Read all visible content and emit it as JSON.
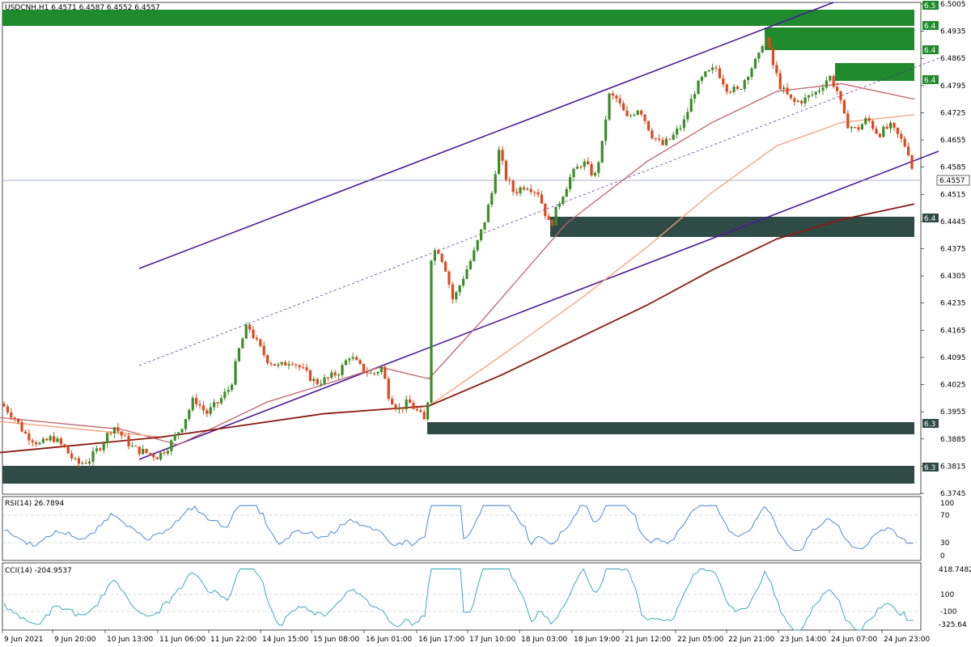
{
  "header": {
    "symbol_line": "USDCNH,H1  6.4571 6.4587 6.4552 6.4557"
  },
  "colors": {
    "bull": "#3d8c2a",
    "bear": "#e0481c",
    "zone_green": "#1f8b2c",
    "zone_dark": "#2f4b46",
    "channel": "#4b1a9a",
    "ma_fast": "#c0646b",
    "ma_mid": "#f2a27c",
    "ma_slow": "#8b1a12",
    "rsi": "#3a7fd0",
    "cci": "#2aa0b8"
  },
  "price_axis": {
    "ticks": [
      "6.5005",
      "6.4935",
      "6.4865",
      "6.4795",
      "6.4725",
      "6.4655",
      "6.4585",
      "6.4515",
      "6.4445",
      "6.4375",
      "6.4305",
      "6.4235",
      "6.4165",
      "6.4095",
      "6.4025",
      "6.3955",
      "6.3885",
      "6.3815",
      "6.3745"
    ],
    "current_label": "6.4557",
    "zone_labels": [
      "6.5",
      "6.4",
      "6.4",
      "6.4",
      "6.4",
      "6.3",
      "6.3"
    ]
  },
  "time_axis": {
    "labels": [
      "9 Jun 2021",
      "9 Jun 20:00",
      "10 Jun 13:00",
      "11 Jun 06:00",
      "11 Jun 22:00",
      "14 Jun 15:00",
      "15 Jun 08:00",
      "16 Jun 01:00",
      "16 Jun 17:00",
      "17 Jun 10:00",
      "18 Jun 03:00",
      "18 Jun 19:00",
      "21 Jun 12:00",
      "22 Jun 05:00",
      "22 Jun 21:00",
      "23 Jun 14:00",
      "24 Jun 07:00",
      "24 Jun 23:00"
    ]
  },
  "rsi_panel": {
    "title": "RSI(14) 26.7894",
    "levels": [
      "100",
      "70",
      "30",
      "0"
    ]
  },
  "cci_panel": {
    "title": "CCI(14) -204.9537",
    "levels": [
      "418.7482",
      "100",
      "-100",
      "-325.64"
    ]
  },
  "chart_data": {
    "type": "candlestick",
    "symbol": "USDCNH",
    "timeframe": "H1",
    "last": {
      "open": 6.4571,
      "high": 6.4587,
      "low": 6.4552,
      "close": 6.4557
    },
    "ylim": [
      6.3745,
      6.5005
    ],
    "close_path": [
      [
        0,
        6.398
      ],
      [
        18,
        6.394
      ],
      [
        30,
        6.39
      ],
      [
        50,
        6.387
      ],
      [
        65,
        6.389
      ],
      [
        80,
        6.386
      ],
      [
        95,
        6.382
      ],
      [
        110,
        6.383
      ],
      [
        125,
        6.387
      ],
      [
        140,
        6.392
      ],
      [
        152,
        6.389
      ],
      [
        165,
        6.386
      ],
      [
        180,
        6.385
      ],
      [
        195,
        6.384
      ],
      [
        210,
        6.387
      ],
      [
        225,
        6.392
      ],
      [
        240,
        6.399
      ],
      [
        255,
        6.395
      ],
      [
        270,
        6.398
      ],
      [
        285,
        6.402
      ],
      [
        296,
        6.412
      ],
      [
        306,
        6.418
      ],
      [
        318,
        6.413
      ],
      [
        330,
        6.409
      ],
      [
        345,
        6.407
      ],
      [
        360,
        6.409
      ],
      [
        375,
        6.406
      ],
      [
        390,
        6.403
      ],
      [
        405,
        6.404
      ],
      [
        420,
        6.406
      ],
      [
        432,
        6.41
      ],
      [
        445,
        6.407
      ],
      [
        460,
        6.405
      ],
      [
        472,
        6.407
      ],
      [
        480,
        6.4
      ],
      [
        492,
        6.396
      ],
      [
        505,
        6.398
      ],
      [
        518,
        6.395
      ],
      [
        528,
        6.392
      ],
      [
        532,
        6.435
      ],
      [
        540,
        6.438
      ],
      [
        550,
        6.433
      ],
      [
        560,
        6.424
      ],
      [
        572,
        6.43
      ],
      [
        585,
        6.436
      ],
      [
        598,
        6.444
      ],
      [
        608,
        6.452
      ],
      [
        616,
        6.463
      ],
      [
        625,
        6.456
      ],
      [
        635,
        6.452
      ],
      [
        650,
        6.454
      ],
      [
        665,
        6.452
      ],
      [
        680,
        6.443
      ],
      [
        690,
        6.449
      ],
      [
        705,
        6.456
      ],
      [
        720,
        6.46
      ],
      [
        735,
        6.456
      ],
      [
        745,
        6.465
      ],
      [
        752,
        6.477
      ],
      [
        762,
        6.476
      ],
      [
        775,
        6.471
      ],
      [
        790,
        6.474
      ],
      [
        805,
        6.467
      ],
      [
        818,
        6.464
      ],
      [
        830,
        6.466
      ],
      [
        845,
        6.47
      ],
      [
        858,
        6.478
      ],
      [
        870,
        6.482
      ],
      [
        885,
        6.484
      ],
      [
        898,
        6.479
      ],
      [
        912,
        6.478
      ],
      [
        925,
        6.483
      ],
      [
        938,
        6.487
      ],
      [
        945,
        6.493
      ],
      [
        955,
        6.485
      ],
      [
        965,
        6.479
      ],
      [
        980,
        6.475
      ],
      [
        995,
        6.476
      ],
      [
        1010,
        6.478
      ],
      [
        1025,
        6.482
      ],
      [
        1035,
        6.478
      ],
      [
        1045,
        6.47
      ],
      [
        1058,
        6.468
      ],
      [
        1072,
        6.471
      ],
      [
        1085,
        6.467
      ],
      [
        1100,
        6.469
      ],
      [
        1112,
        6.466
      ],
      [
        1122,
        6.463
      ],
      [
        1130,
        6.4557
      ]
    ],
    "indicators": {
      "ma_fast": [
        [
          0,
          6.394
        ],
        [
          150,
          6.391
        ],
        [
          220,
          6.387
        ],
        [
          330,
          6.398
        ],
        [
          470,
          6.407
        ],
        [
          530,
          6.404
        ],
        [
          600,
          6.42
        ],
        [
          700,
          6.444
        ],
        [
          800,
          6.46
        ],
        [
          880,
          6.47
        ],
        [
          960,
          6.478
        ],
        [
          1040,
          6.48
        ],
        [
          1130,
          6.476
        ]
      ],
      "ma_mid": [
        [
          0,
          6.393
        ],
        [
          200,
          6.389
        ],
        [
          400,
          6.395
        ],
        [
          530,
          6.397
        ],
        [
          620,
          6.41
        ],
        [
          720,
          6.425
        ],
        [
          800,
          6.438
        ],
        [
          880,
          6.452
        ],
        [
          960,
          6.464
        ],
        [
          1040,
          6.47
        ],
        [
          1130,
          6.472
        ]
      ],
      "ma_slow": [
        [
          0,
          6.385
        ],
        [
          200,
          6.389
        ],
        [
          400,
          6.395
        ],
        [
          530,
          6.397
        ],
        [
          620,
          6.405
        ],
        [
          720,
          6.415
        ],
        [
          800,
          6.423
        ],
        [
          880,
          6.432
        ],
        [
          960,
          6.44
        ],
        [
          1040,
          6.445
        ],
        [
          1130,
          6.449
        ]
      ],
      "rsi_value": 26.7894,
      "cci_value": -204.9537
    }
  }
}
